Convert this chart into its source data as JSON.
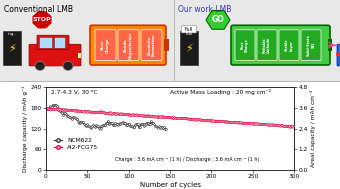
{
  "title_left": "Conventional LMB",
  "title_right": "Our work LMB",
  "xlabel": "Number of cycles",
  "ylabel_left": "Discharge capacity / mAh g⁻¹",
  "ylabel_right": "Areal capacity / mAh cm⁻²",
  "annotation1": "2.7-4.3 V, 30 ᵒC",
  "annotation2": "Active Mass Loading : 20 mg cm⁻²",
  "annotation3": "Charge : 3.6 mA cm⁻² (1 h) / Discharge : 3.6 mA cm⁻² (1 h)",
  "legend1": "NCM622",
  "legend2": "Al2-FCG75",
  "ylim_left": [
    0,
    240
  ],
  "ylim_right": [
    0,
    4.8
  ],
  "xlim": [
    0,
    300
  ],
  "yticks_left": [
    0,
    60,
    120,
    180,
    240
  ],
  "yticks_right": [
    0.0,
    1.2,
    2.4,
    3.6,
    4.8
  ],
  "xticks": [
    0,
    50,
    100,
    150,
    200,
    250,
    300
  ],
  "color_ncm": "#333333",
  "color_al2": "#e8003d",
  "background": "#ffffff",
  "plot_bg": "#ffffff",
  "schematic_bg": "#e8e8e8",
  "conv_cell_labels": [
    "Slow\nCharge",
    "Anode\nDegradation",
    "Dendrite\nFormation"
  ],
  "work_cell_labels": [
    "Fast\nCharge",
    "Reliable\nCathode",
    "Stable\nLayer",
    "Solid-State\nSEI"
  ],
  "fig_width": 3.4,
  "fig_height": 1.89,
  "dpi": 100
}
